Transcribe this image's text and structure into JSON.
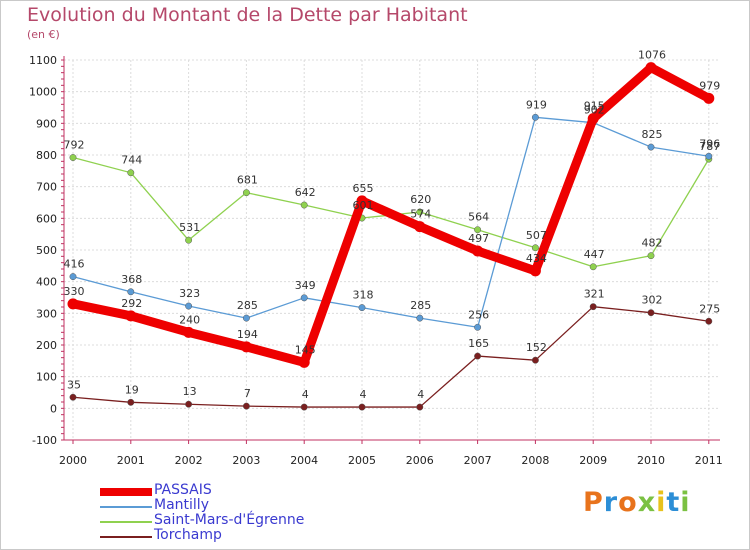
{
  "title": "Evolution du Montant de la Dette par Habitant",
  "unit_label": "(en €)",
  "logo_text": "Proxiti",
  "logo_colors": [
    "#e8731c",
    "#2c8ed6",
    "#e8731c",
    "#7bc142",
    "#e8c21c",
    "#2c8ed6",
    "#7bc142"
  ],
  "chart_data": {
    "type": "line",
    "title": "Evolution du Montant de la Dette par Habitant",
    "ylabel": "(en €)",
    "xlabel": "",
    "x": [
      "2000",
      "2001",
      "2002",
      "2003",
      "2004",
      "2005",
      "2006",
      "2007",
      "2008",
      "2009",
      "2010",
      "2011"
    ],
    "ylim": [
      -100,
      1100
    ],
    "yticks": [
      "-100",
      "0",
      "100",
      "200",
      "300",
      "400",
      "500",
      "600",
      "700",
      "800",
      "900",
      "1000",
      "1100"
    ],
    "grid": true,
    "legend_position": "bottom-left",
    "series": [
      {
        "name": "PASSAIS",
        "color": "#ee0000",
        "values": [
          330,
          292,
          240,
          194,
          145,
          655,
          574,
          497,
          434,
          915,
          1076,
          979
        ],
        "labels": [
          "330",
          "292",
          "240",
          "194",
          "145",
          "655",
          "574",
          "497",
          "434",
          "915",
          "1076",
          "979"
        ]
      },
      {
        "name": "Mantilly",
        "color": "#5b9bd5",
        "values": [
          416,
          368,
          323,
          285,
          349,
          318,
          285,
          256,
          919,
          902,
          825,
          796
        ],
        "labels": [
          "416",
          "368",
          "323",
          "285",
          "349",
          "318",
          "285",
          "256",
          "919",
          "902",
          "825",
          "796"
        ]
      },
      {
        "name": "Saint-Mars-d'Égrenne",
        "color": "#8fd14f",
        "values": [
          792,
          744,
          531,
          681,
          642,
          601,
          620,
          564,
          507,
          447,
          482,
          787
        ],
        "labels": [
          "792",
          "744",
          "531",
          "681",
          "642",
          "601",
          "620",
          "564",
          "507",
          "447",
          "482",
          "787"
        ]
      },
      {
        "name": "Torchamp",
        "color": "#7a1f1f",
        "values": [
          35,
          19,
          13,
          7,
          4,
          4,
          4,
          165,
          152,
          321,
          302,
          275
        ],
        "labels": [
          "35",
          "19",
          "13",
          "7",
          "4",
          "4",
          "4",
          "165",
          "152",
          "321",
          "302",
          "275"
        ]
      }
    ]
  }
}
